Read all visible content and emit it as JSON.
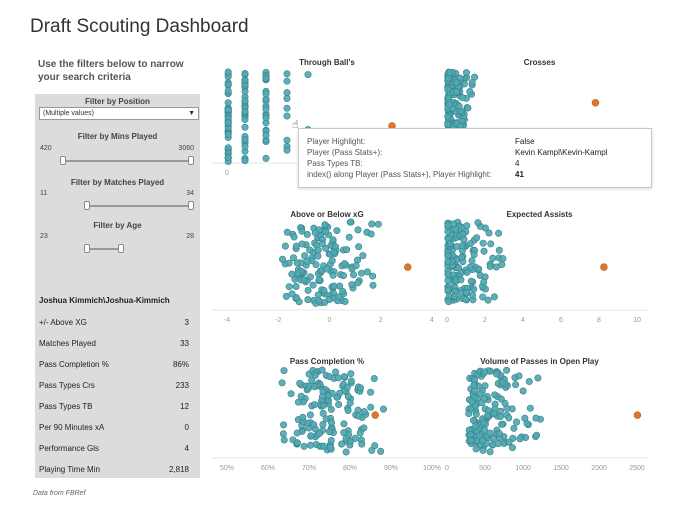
{
  "title": "Draft Scouting Dashboard",
  "instructions": "Use the filters below to narrow your search criteria",
  "filters": {
    "position": {
      "label": "Filter by Position",
      "value": "(Multiple values)"
    },
    "mins": {
      "label": "Filter by Mins Played",
      "min": "420",
      "max": "3060",
      "low": 0.0,
      "high": 1.0
    },
    "matches": {
      "label": "Filter by Matches Played",
      "min": "11",
      "max": "34",
      "low": 0.0,
      "high": 1.0
    },
    "age": {
      "label": "Filter by Age",
      "min": "23",
      "max": "28",
      "low": 0.0,
      "high": 1.0
    }
  },
  "player": {
    "name": "Joshua Kimmich\\Joshua-Kimmich",
    "stats": [
      {
        "label": "+/- Above XG",
        "value": "3"
      },
      {
        "label": "Matches Played",
        "value": "33"
      },
      {
        "label": "Pass Completion %",
        "value": "86%"
      },
      {
        "label": "Pass Types Crs",
        "value": "233"
      },
      {
        "label": "Pass Types TB",
        "value": "12"
      },
      {
        "label": "Per 90 Minutes xA",
        "value": "0"
      },
      {
        "label": "Performance Gls",
        "value": "4"
      },
      {
        "label": "Playing Time Min",
        "value": "2,818"
      }
    ]
  },
  "footnote": "Data from FBRef",
  "tooltip": {
    "rows": [
      {
        "key": "Player Highlight:",
        "value": "False"
      },
      {
        "key": "Player (Pass Stats+):",
        "value": "Kevin Kampl\\Kevin-Kampl"
      },
      {
        "key": "Pass Types TB:",
        "value": "4"
      },
      {
        "key": "index() along Player (Pass Stats+), Player Highlight:",
        "value": "41"
      }
    ]
  },
  "colors": {
    "dot": "#4fa9b3",
    "dot_stroke": "#3b7f87",
    "highlight": "#e0782b",
    "sidebar": "#dcdcdc"
  },
  "chart_data": [
    {
      "type": "scatter",
      "title": "Through Ball's",
      "xticks": [
        "0",
        "2",
        "4"
      ],
      "xlim": [
        0,
        15
      ],
      "highlight_x": 12
    },
    {
      "type": "scatter",
      "title": "Crosses",
      "xticks": [],
      "xlim": [
        0,
        300
      ],
      "highlight_x": 233
    },
    {
      "type": "scatter",
      "title": "Above or Below xG",
      "xticks": [
        "-4",
        "-2",
        "0",
        "2",
        "4"
      ],
      "xlim": [
        -4,
        4
      ],
      "highlight_x": 3
    },
    {
      "type": "scatter",
      "title": "Expected Assists",
      "xticks": [
        "0",
        "2",
        "4",
        "6",
        "8",
        "10"
      ],
      "xlim": [
        0,
        10
      ],
      "highlight_x": 8.2
    },
    {
      "type": "scatter",
      "title": "Pass Completion %",
      "xticks": [
        "50%",
        "60%",
        "70%",
        "80%",
        "90%",
        "100%"
      ],
      "xlim": [
        50,
        100
      ],
      "highlight_x": 86
    },
    {
      "type": "scatter",
      "title": "Volume of Passes in Open Play",
      "xticks": [
        "0",
        "500",
        "1000",
        "1500",
        "2000",
        "2500"
      ],
      "xlim": [
        0,
        2500
      ],
      "highlight_x": 2480
    }
  ]
}
